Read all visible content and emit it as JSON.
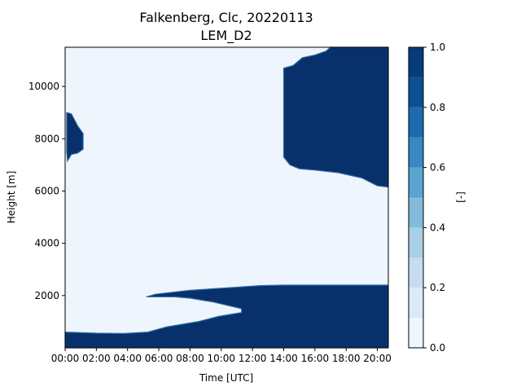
{
  "chart_data": {
    "type": "heatmap",
    "title": "Falkenberg, Clc, 20220113",
    "subtitle": "LEM_D2",
    "xlabel": "Time [UTC]",
    "ylabel": "Height [m]",
    "colorbar_label": "[-]",
    "x_tick_labels": [
      "00:00",
      "02:00",
      "04:00",
      "06:00",
      "08:00",
      "10:00",
      "12:00",
      "14:00",
      "16:00",
      "18:00",
      "20:00"
    ],
    "x_ticks_hours": [
      0,
      2,
      4,
      6,
      8,
      10,
      12,
      14,
      16,
      18,
      20
    ],
    "xlim_hours": [
      0,
      20.7
    ],
    "y_ticks": [
      2000,
      4000,
      6000,
      8000,
      10000
    ],
    "y_tick_labels": [
      "2000",
      "4000",
      "6000",
      "8000",
      "10000"
    ],
    "ylim": [
      0,
      11500
    ],
    "colorbar_ticks": [
      "0.0",
      "0.2",
      "0.4",
      "0.6",
      "0.8",
      "1.0"
    ],
    "colorbar_tick_values": [
      0.0,
      0.2,
      0.4,
      0.6,
      0.8,
      1.0
    ],
    "levels": [
      0.0,
      0.1,
      0.2,
      0.3,
      0.4,
      0.5,
      0.6,
      0.7,
      0.8,
      0.9,
      1.0
    ],
    "colormap": [
      "#eef5fc",
      "#dce9f6",
      "#c8dcf0",
      "#a9cfe5",
      "#82bbdb",
      "#5ba3d0",
      "#3888c1",
      "#1c6aaf",
      "#0b4f94",
      "#083b7a"
    ],
    "background_color": "#eef5fc",
    "cloud_color": "#08306b",
    "cloud_regions": [
      {
        "name": "mid-level cloud (early)",
        "value": 1.0,
        "outline_hours_m": [
          [
            0.1,
            9000
          ],
          [
            0.4,
            8950
          ],
          [
            0.8,
            8500
          ],
          [
            1.15,
            8200
          ],
          [
            1.15,
            7600
          ],
          [
            0.8,
            7450
          ],
          [
            0.4,
            7400
          ],
          [
            0.15,
            7150
          ],
          [
            0.1,
            7500
          ]
        ]
      },
      {
        "name": "upper cloud (afternoon)",
        "value": 1.0,
        "outline_hours_m": [
          [
            14.0,
            10700
          ],
          [
            14.6,
            10800
          ],
          [
            15.2,
            11100
          ],
          [
            16.0,
            11200
          ],
          [
            16.7,
            11350
          ],
          [
            17.0,
            11500
          ],
          [
            20.7,
            11500
          ],
          [
            20.7,
            6150
          ],
          [
            20.0,
            6200
          ],
          [
            19.0,
            6500
          ],
          [
            17.5,
            6700
          ],
          [
            16.0,
            6800
          ],
          [
            15.0,
            6850
          ],
          [
            14.4,
            7000
          ],
          [
            14.0,
            7300
          ]
        ]
      },
      {
        "name": "boundary-layer cloud",
        "value": 1.0,
        "outline_hours_m": [
          [
            0.0,
            600
          ],
          [
            2.0,
            560
          ],
          [
            3.8,
            550
          ],
          [
            5.3,
            600
          ],
          [
            6.5,
            800
          ],
          [
            7.5,
            900
          ],
          [
            8.5,
            1000
          ],
          [
            9.8,
            1200
          ],
          [
            11.3,
            1350
          ],
          [
            11.3,
            1500
          ],
          [
            9.5,
            1750
          ],
          [
            8.0,
            1900
          ],
          [
            7.0,
            1950
          ],
          [
            5.2,
            1950
          ],
          [
            5.8,
            2050
          ],
          [
            8.0,
            2200
          ],
          [
            10.5,
            2300
          ],
          [
            12.5,
            2380
          ],
          [
            14.0,
            2400
          ],
          [
            20.7,
            2400
          ],
          [
            20.7,
            0
          ],
          [
            0.0,
            0
          ]
        ]
      }
    ],
    "grid": false
  }
}
